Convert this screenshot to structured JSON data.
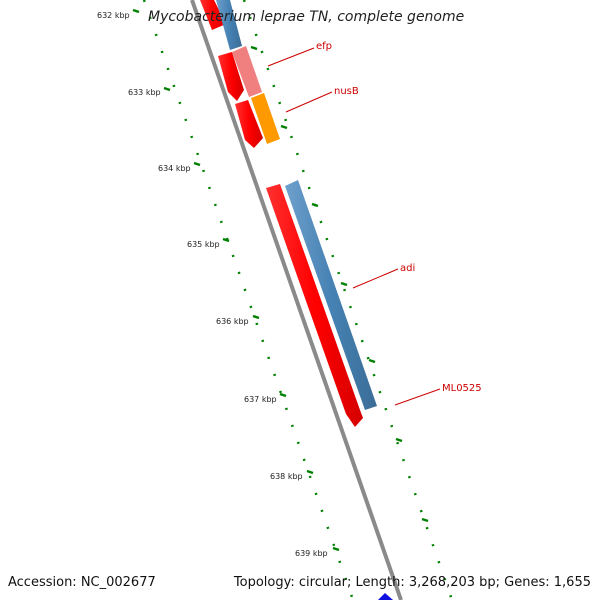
{
  "title": "Mycobacterium leprae TN, complete genome",
  "footer": {
    "accession": "Accession: NC_002677",
    "summary": "Topology: circular; Length: 3,268,203 bp; Genes: 1,655"
  },
  "ticks": [
    {
      "label": "632 kbp"
    },
    {
      "label": "633 kbp"
    },
    {
      "label": "634 kbp"
    },
    {
      "label": "635 kbp"
    },
    {
      "label": "636 kbp"
    },
    {
      "label": "637 kbp"
    },
    {
      "label": "638 kbp"
    },
    {
      "label": "639 kbp"
    }
  ],
  "genes": [
    {
      "name": "efp",
      "color": "#f08080"
    },
    {
      "name": "nusB",
      "color": "#ff9900"
    },
    {
      "name": "adi",
      "color": "#4682b4"
    },
    {
      "name": "ML0525",
      "color": "#4682b4"
    }
  ],
  "colors": {
    "cds": "#ff0000",
    "label": "#cc0000",
    "tick": "#008000",
    "backbone": "#808080",
    "gene_blue": "#4682b4"
  }
}
